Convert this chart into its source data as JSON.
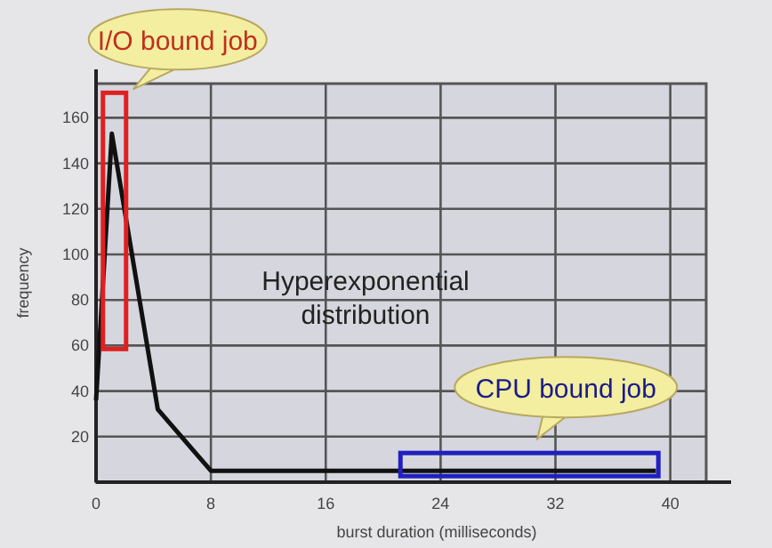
{
  "chart_data": {
    "type": "line",
    "xlabel": "burst duration (milliseconds)",
    "ylabel": "frequency",
    "x": [
      0,
      1.1,
      4.3,
      8,
      39
    ],
    "values": [
      36,
      153,
      32,
      5,
      5
    ],
    "color": "#111111",
    "xlim": [
      0,
      42.5
    ],
    "ylim": [
      0,
      175
    ],
    "xticks": [
      0,
      8,
      16,
      24,
      32,
      40
    ],
    "yticks": [
      20,
      40,
      60,
      80,
      100,
      120,
      140,
      160
    ],
    "grid": true,
    "annotations": [
      {
        "text": "I/O bound job",
        "x": 1.1,
        "y": 153
      },
      "Hyperexponential distribution",
      {
        "text": "CPU bound job",
        "x": 30,
        "y": 5
      }
    ]
  }
}
